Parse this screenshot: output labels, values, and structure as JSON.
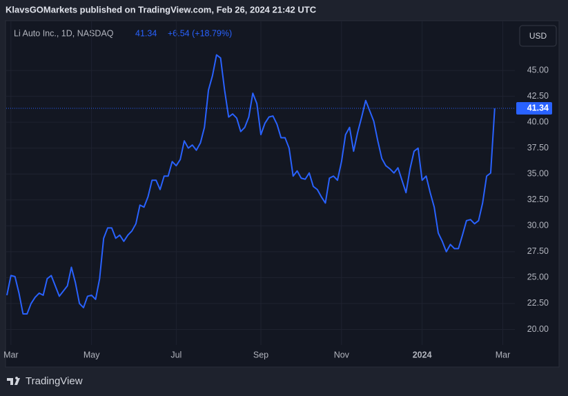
{
  "header": "KlavsGOMarkets published on TradingView.com, Feb 26, 2024 21:42 UTC",
  "footer": "TradingView",
  "chart_data": {
    "type": "line",
    "title": "Li Auto Inc., 1D, NASDAQ",
    "subtitle": "+6.54 (+18.79%)",
    "currency": "USD",
    "color": "#2962ff",
    "grid": true,
    "values": [
      23.3,
      25.2,
      25.1,
      23.5,
      21.5,
      21.5,
      22.5,
      23.1,
      23.5,
      23.3,
      24.9,
      25.2,
      24.2,
      23.2,
      23.7,
      24.2,
      26.0,
      24.5,
      22.5,
      22.1,
      23.2,
      23.3,
      22.9,
      24.9,
      28.8,
      29.8,
      29.8,
      28.8,
      29.1,
      28.5,
      29.1,
      29.5,
      30.2,
      32.0,
      31.8,
      32.8,
      34.4,
      34.4,
      33.5,
      34.8,
      34.8,
      36.2,
      35.8,
      36.4,
      38.2,
      37.5,
      37.8,
      37.3,
      38.0,
      39.5,
      43.1,
      44.5,
      46.5,
      46.2,
      43.1,
      40.5,
      40.8,
      40.4,
      39.1,
      39.5,
      40.5,
      42.8,
      41.8,
      38.8,
      39.9,
      40.5,
      40.6,
      39.8,
      38.5,
      38.5,
      37.5,
      34.8,
      35.3,
      34.6,
      34.5,
      35.1,
      33.8,
      33.5,
      32.8,
      32.2,
      34.6,
      34.8,
      34.4,
      36.2,
      38.8,
      39.5,
      37.2,
      39.0,
      40.5,
      42.1,
      41.1,
      40.1,
      38.2,
      36.5,
      35.8,
      35.5,
      35.1,
      35.6,
      34.4,
      33.2,
      35.5,
      37.2,
      37.5,
      34.4,
      34.8,
      33.2,
      31.8,
      29.3,
      28.5,
      27.5,
      28.2,
      27.8,
      27.8,
      29.1,
      30.5,
      30.6,
      30.2,
      30.5,
      32.2,
      34.8,
      35.1,
      41.34
    ],
    "xlim": [
      0,
      126
    ],
    "xticks": [
      {
        "value": 1,
        "label": "Mar"
      },
      {
        "value": 21,
        "label": "May"
      },
      {
        "value": 42,
        "label": "Jul"
      },
      {
        "value": 63,
        "label": "Sep"
      },
      {
        "value": 83,
        "label": "Nov"
      },
      {
        "value": 103,
        "label": "2024"
      },
      {
        "value": 123,
        "label": "Mar"
      }
    ],
    "ylim": [
      18.5,
      49.8
    ],
    "yticks": [
      {
        "value": 20,
        "label": "20.00"
      },
      {
        "value": 22.5,
        "label": "22.50"
      },
      {
        "value": 25,
        "label": "25.00"
      },
      {
        "value": 27.5,
        "label": "27.50"
      },
      {
        "value": 30,
        "label": "30.00"
      },
      {
        "value": 32.5,
        "label": "32.50"
      },
      {
        "value": 35,
        "label": "35.00"
      },
      {
        "value": 37.5,
        "label": "37.50"
      },
      {
        "value": 40,
        "label": "40.00"
      },
      {
        "value": 42.5,
        "label": "42.50"
      },
      {
        "value": 45,
        "label": "45.00"
      }
    ]
  }
}
